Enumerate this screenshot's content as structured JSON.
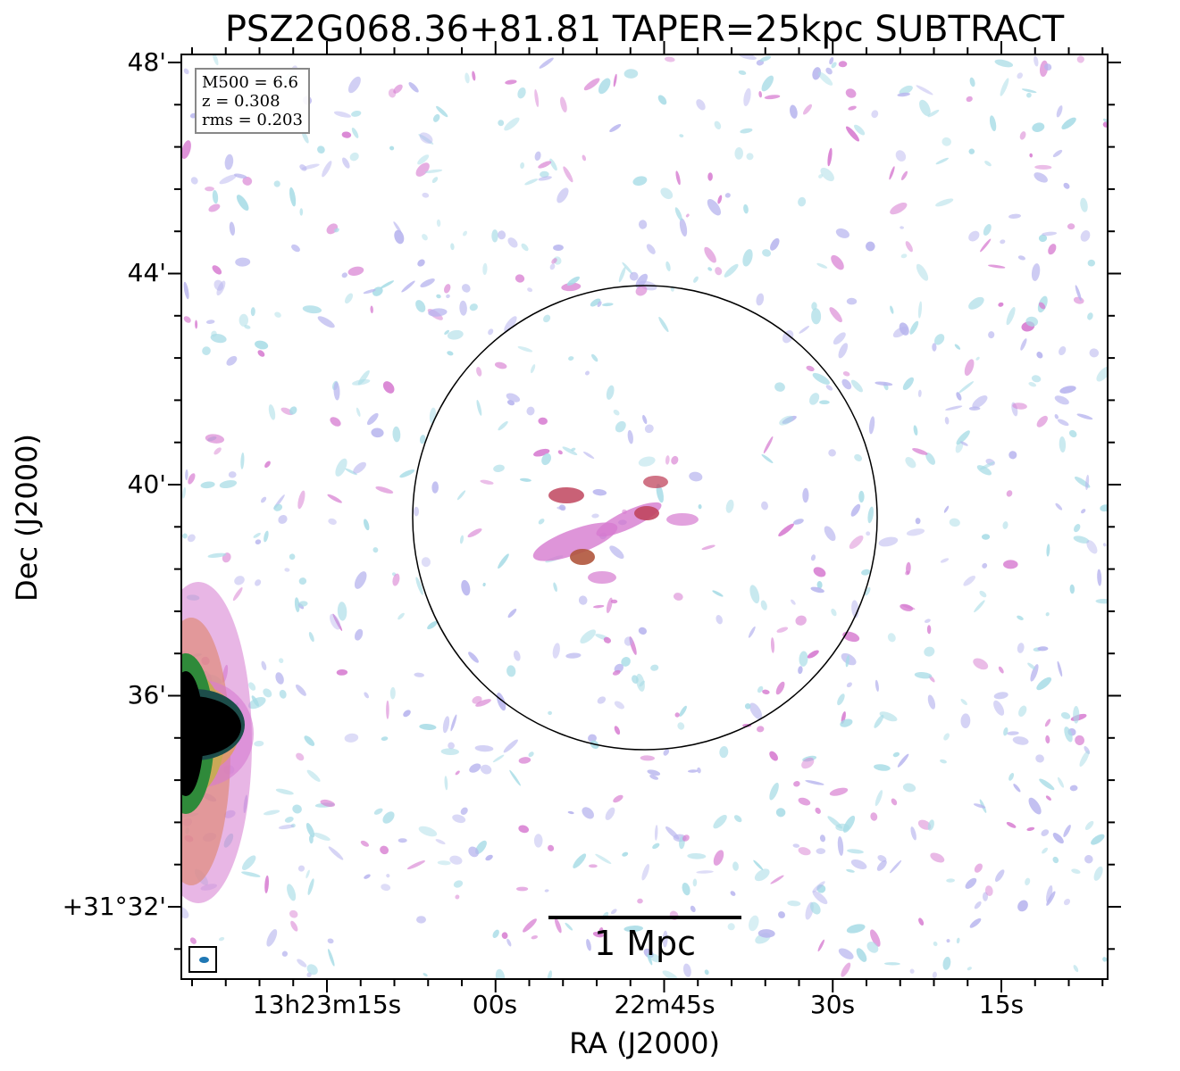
{
  "title": "PSZ2G068.36+81.81 TAPER=25kpc SUBTRACT",
  "info": {
    "line1": "M500 = 6.6",
    "line2": "z = 0.308",
    "line3": "rms = 0.203"
  },
  "scalebar_label": "1 Mpc",
  "axes": {
    "xlabel": "RA (J2000)",
    "ylabel": "Dec (J2000)",
    "xticks": [
      "13h23m15s",
      "00s",
      "22m45s",
      "30s",
      "15s"
    ],
    "yticks": [
      "48'",
      "44'",
      "40'",
      "36'",
      "+31°32'"
    ]
  },
  "colors": {
    "circle": "#000000",
    "beam": "#1f77b4",
    "noise_light": "#a8dce6",
    "noise_mid": "#b7b4ee",
    "noise_strong": "#d67ad0",
    "emission_core": "#c0455e",
    "source_dark": "#000000",
    "source_green": "#2f8a3a"
  }
}
